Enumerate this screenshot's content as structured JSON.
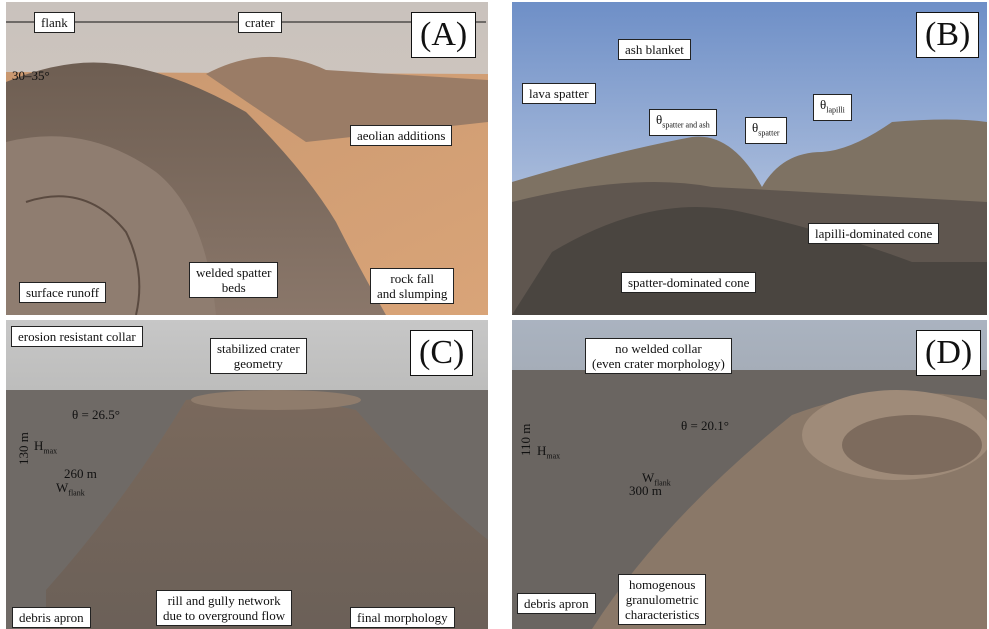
{
  "panels": {
    "a": {
      "letter": "(A)",
      "top_left": "flank",
      "top_mid": "crater",
      "angle": "30–35°",
      "aeolian": "aeolian additions",
      "runoff": "surface runoff",
      "welded": "welded spatter\nbeds",
      "rockfall": "rock fall\nand slumping"
    },
    "b": {
      "letter": "(B)",
      "lava": "lava spatter",
      "ash": "ash blanket",
      "theta_sa": "θ",
      "theta_sa_sub": "spatter and ash",
      "theta_sp": "θ",
      "theta_sp_sub": "spatter",
      "theta_la": "θ",
      "theta_la_sub": "lapilli",
      "lapilli_cone": "lapilli-dominated cone",
      "spatter_cone": "spatter-dominated cone"
    },
    "c": {
      "letter": "(C)",
      "collar": "erosion resistant collar",
      "stabilized": "stabilized crater\ngeometry",
      "theta": "θ = 26.5°",
      "height": "130 m",
      "hmax": "H",
      "hmax_sub": "max",
      "width": "260 m",
      "wflank": "W",
      "wflank_sub": "flank",
      "debris": "debris apron",
      "rill": "rill and gully network\ndue to overground flow",
      "final": "final morphology"
    },
    "d": {
      "letter": "(D)",
      "collar": "no welded collar\n(even crater morphology)",
      "theta": "θ = 20.1°",
      "height": "110 m",
      "hmax": "H",
      "hmax_sub": "max",
      "width": "300 m",
      "wflank": "W",
      "wflank_sub": "flank",
      "debris": "debris apron",
      "homog": "homogenous\ngranulometric\ncharacteristics"
    }
  }
}
